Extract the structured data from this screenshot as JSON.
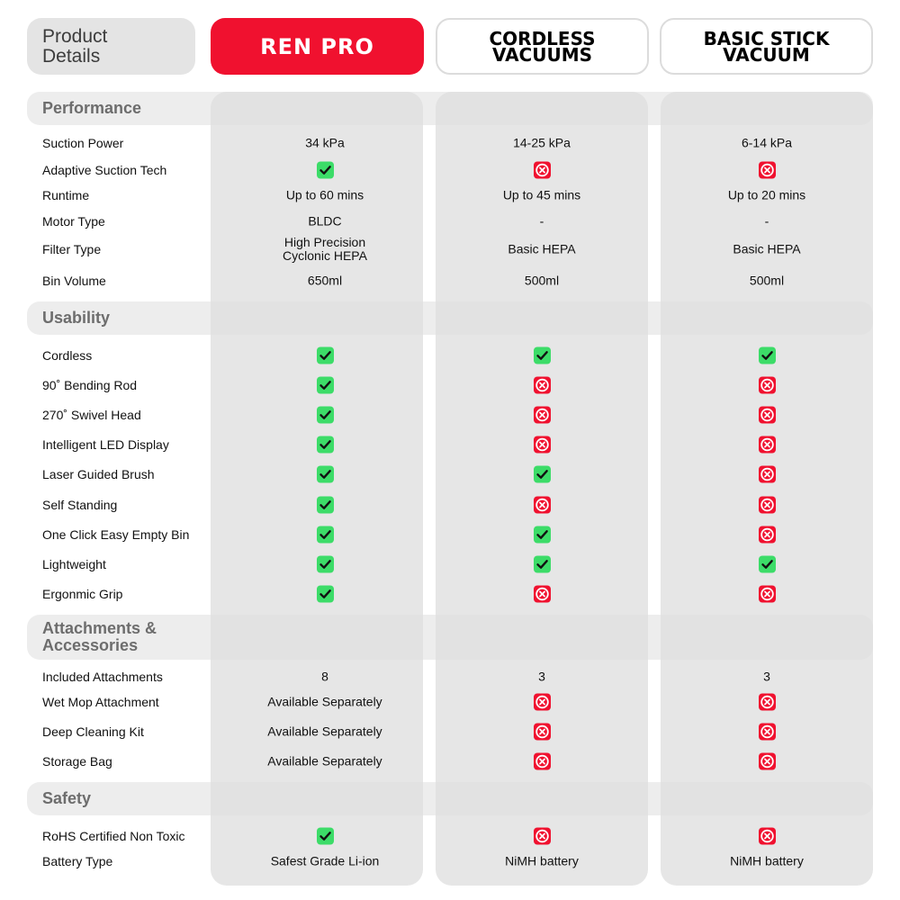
{
  "header": {
    "details": "Product\nDetails",
    "col1": "REN PRO",
    "col2": "CORDLESS\nVACUUMS",
    "col3": "BASIC STICK\nVACUUM"
  },
  "colors": {
    "brand_red": "#f0112f",
    "check_green": "#3cdc68",
    "panel_grey": "#e6e6e6"
  },
  "sections": {
    "performance": "Performance",
    "usability": "Usability",
    "attachments": "Attachments &\nAccessories",
    "safety": "Safety"
  },
  "rows": {
    "suction": {
      "label": "Suction Power",
      "v1": "34 kPa",
      "v2": "14-25 kPa",
      "v3": "6-14 kPa"
    },
    "adaptive": {
      "label": "Adaptive Suction Tech",
      "v1": "check",
      "v2": "cross",
      "v3": "cross"
    },
    "runtime": {
      "label": "Runtime",
      "v1": "Up to 60 mins",
      "v2": "Up to 45 mins",
      "v3": "Up to 20 mins"
    },
    "motor": {
      "label": "Motor Type",
      "v1": "BLDC",
      "v2": "-",
      "v3": "-"
    },
    "filter": {
      "label": "Filter Type",
      "v1": "High Precision\nCyclonic HEPA",
      "v2": "Basic HEPA",
      "v3": "Basic HEPA"
    },
    "bin": {
      "label": "Bin Volume",
      "v1": "650ml",
      "v2": "500ml",
      "v3": "500ml"
    },
    "cordless": {
      "label": "Cordless",
      "v1": "check",
      "v2": "check",
      "v3": "check"
    },
    "bending": {
      "label": "90˚ Bending Rod",
      "v1": "check",
      "v2": "cross",
      "v3": "cross"
    },
    "swivel": {
      "label": "270˚ Swivel Head",
      "v1": "check",
      "v2": "cross",
      "v3": "cross"
    },
    "led": {
      "label": "Intelligent LED Display",
      "v1": "check",
      "v2": "cross",
      "v3": "cross"
    },
    "laser": {
      "label": "Laser Guided Brush",
      "v1": "check",
      "v2": "check",
      "v3": "cross"
    },
    "standing": {
      "label": "Self Standing",
      "v1": "check",
      "v2": "cross",
      "v3": "cross"
    },
    "oneclick": {
      "label": "One Click Easy Empty Bin",
      "v1": "check",
      "v2": "check",
      "v3": "cross"
    },
    "light": {
      "label": "Lightweight",
      "v1": "check",
      "v2": "check",
      "v3": "check"
    },
    "grip": {
      "label": "Ergonmic Grip",
      "v1": "check",
      "v2": "cross",
      "v3": "cross"
    },
    "included": {
      "label": "Included Attachments",
      "v1": "8",
      "v2": "3",
      "v3": "3"
    },
    "wetmop": {
      "label": "Wet Mop Attachment",
      "v1": "Available Separately",
      "v2": "cross",
      "v3": "cross"
    },
    "deepclean": {
      "label": "Deep Cleaning Kit",
      "v1": "Available Separately",
      "v2": "cross",
      "v3": "cross"
    },
    "storage": {
      "label": "Storage Bag",
      "v1": "Available Separately",
      "v2": "cross",
      "v3": "cross"
    },
    "rohs": {
      "label": "RoHS Certified Non Toxic",
      "v1": "check",
      "v2": "cross",
      "v3": "cross"
    },
    "battery": {
      "label": "Battery Type",
      "v1": "Safest Grade Li-ion",
      "v2": "NiMH battery",
      "v3": "NiMH battery"
    }
  }
}
